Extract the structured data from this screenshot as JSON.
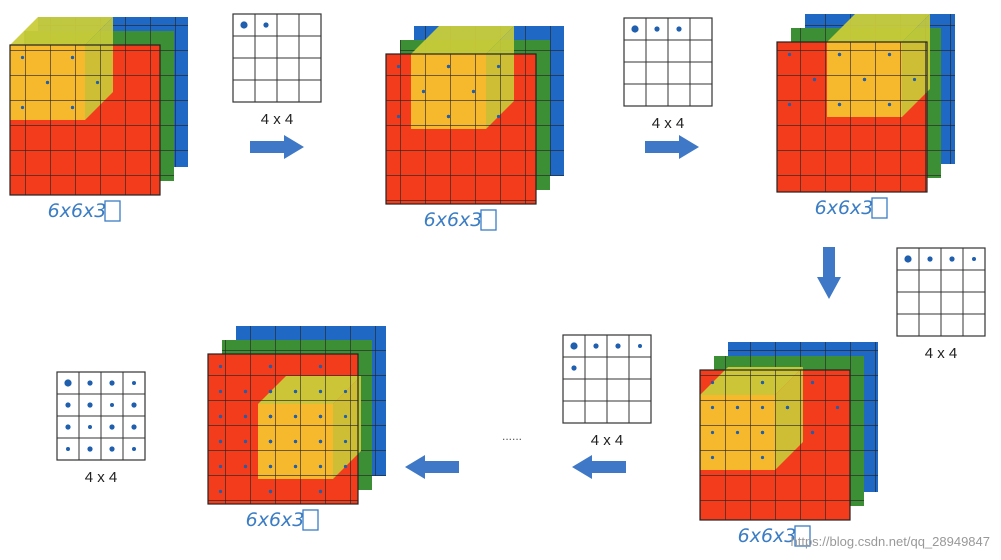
{
  "output_label": "4 x 4",
  "input_label": "6x6x3",
  "ellipsis": "......",
  "watermark": "https://blog.csdn.net/qq_28949847",
  "colors": {
    "red": "#f23c1c",
    "green": "#3c8f35",
    "blue": "#1f68c4",
    "yellow": "#f6b82c",
    "yellow_top": "#c9cc3a",
    "arrow": "#3e78c6",
    "dot": "#1f5fae"
  },
  "steps": [
    {
      "filter_at": [
        0,
        0
      ],
      "filled_outputs": 2
    },
    {
      "filter_at": [
        0,
        1
      ],
      "filled_outputs": 3
    },
    {
      "filter_at": [
        0,
        2
      ],
      "filled_outputs": 4
    },
    {
      "filter_at": [
        1,
        0
      ],
      "filled_outputs": 5
    },
    {
      "filter_at": [
        2,
        2
      ],
      "filled_outputs": 16
    }
  ]
}
